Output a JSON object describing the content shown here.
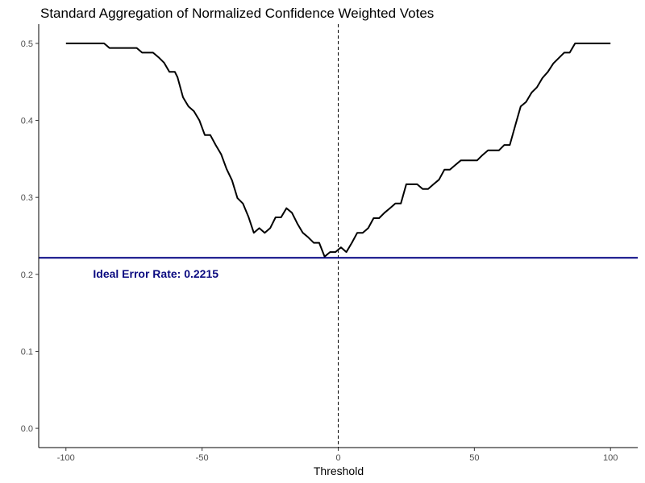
{
  "chart_data": {
    "type": "line",
    "title": "Standard Aggregation of Normalized Confidence Weighted Votes",
    "xlabel": "Threshold",
    "ylabel": "",
    "xlim": [
      -110,
      110
    ],
    "ylim": [
      -0.025,
      0.525
    ],
    "x_ticks": [
      -100,
      -50,
      0,
      50,
      100
    ],
    "x_tick_labels": [
      "-100",
      "-50",
      "0",
      "50",
      "100"
    ],
    "y_ticks": [
      0.0,
      0.1,
      0.2,
      0.3,
      0.4,
      0.5
    ],
    "y_tick_labels": [
      "0.0",
      "0.1",
      "0.2",
      "0.3",
      "0.4",
      "0.5"
    ],
    "grid": false,
    "series": [
      {
        "color": "#000000",
        "x": [
          -100,
          -86,
          -84,
          -74,
          -72,
          -68,
          -66,
          -64,
          -62,
          -60,
          -59,
          -57,
          -55,
          -53,
          -51,
          -49,
          -47,
          -45,
          -43,
          -41,
          -39,
          -37,
          -35,
          -33,
          -31,
          -29,
          -27,
          -25,
          -23,
          -21,
          -19,
          -17,
          -15,
          -13,
          -11,
          -9,
          -7,
          -5,
          -3,
          -1,
          1,
          3,
          5,
          7,
          9,
          11,
          13,
          15,
          17,
          19,
          21,
          23,
          25,
          27,
          29,
          31,
          33,
          35,
          37,
          39,
          41,
          43,
          45,
          47,
          49,
          51,
          53,
          55,
          57,
          59,
          61,
          63,
          65,
          67,
          69,
          71,
          73,
          75,
          77,
          79,
          81,
          83,
          85,
          87,
          89,
          91,
          93,
          95,
          97,
          100
        ],
        "y": [
          0.5,
          0.5,
          0.494,
          0.494,
          0.488,
          0.488,
          0.482,
          0.475,
          0.463,
          0.463,
          0.456,
          0.43,
          0.418,
          0.412,
          0.4,
          0.381,
          0.381,
          0.368,
          0.356,
          0.337,
          0.322,
          0.299,
          0.292,
          0.275,
          0.254,
          0.26,
          0.254,
          0.26,
          0.274,
          0.274,
          0.286,
          0.28,
          0.266,
          0.254,
          0.248,
          0.241,
          0.241,
          0.223,
          0.229,
          0.229,
          0.235,
          0.229,
          0.241,
          0.254,
          0.254,
          0.26,
          0.273,
          0.273,
          0.28,
          0.286,
          0.292,
          0.292,
          0.317,
          0.317,
          0.317,
          0.311,
          0.311,
          0.317,
          0.323,
          0.336,
          0.336,
          0.342,
          0.348,
          0.348,
          0.348,
          0.348,
          0.355,
          0.361,
          0.361,
          0.361,
          0.368,
          0.368,
          0.393,
          0.418,
          0.424,
          0.436,
          0.443,
          0.455,
          0.463,
          0.474,
          0.481,
          0.488,
          0.488,
          0.5,
          0.5,
          0.5,
          0.5,
          0.5,
          0.5,
          0.5
        ]
      }
    ],
    "hline": {
      "y": 0.2215,
      "color": "#000080"
    },
    "vline": {
      "x": 0,
      "style": "dashed",
      "color": "#000000"
    },
    "annotations": [
      {
        "text": "Ideal Error Rate: 0.2215",
        "x": -67,
        "y": 0.2,
        "color": "#0a0a80"
      }
    ]
  }
}
